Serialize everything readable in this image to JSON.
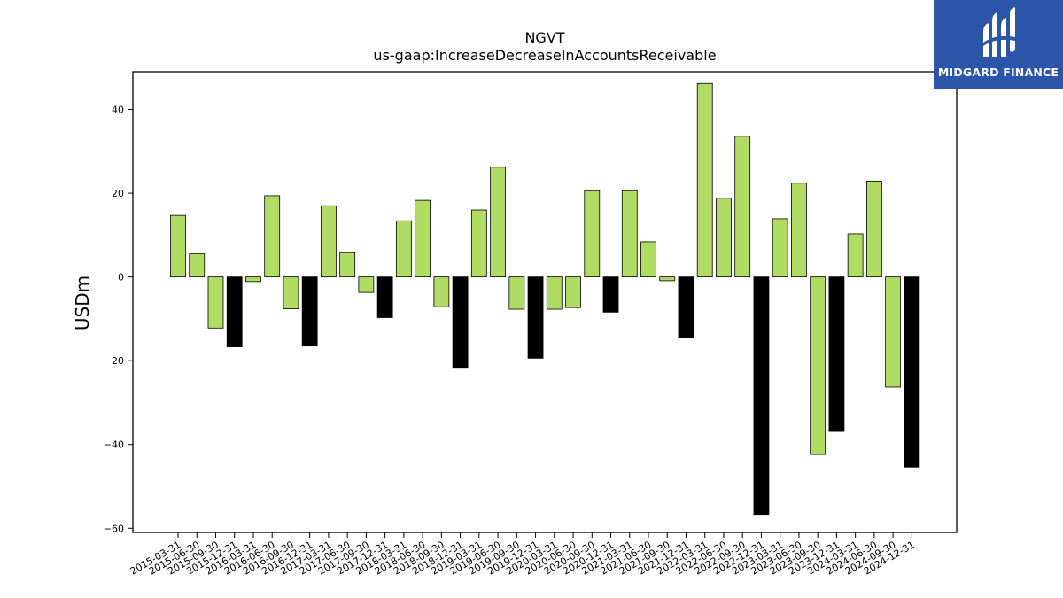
{
  "brand": {
    "name": "MIDGARD FINANCE",
    "background": "#2a55a8",
    "icon": "midgard-logo-icon"
  },
  "chart_data": {
    "type": "bar",
    "title": "NGVT",
    "subtitle": "us-gaap:IncreaseDecreaseInAccountsReceivable",
    "xlabel": "",
    "ylabel": "USDm",
    "ylim": [
      -61,
      49
    ],
    "yticks": [
      -60,
      -40,
      -20,
      0,
      20,
      40
    ],
    "grid": false,
    "colors": {
      "default": "#b0dc64",
      "q4": "#000000",
      "edge": "#000000"
    },
    "note_colors": "Bars for Dec-31 periods are drawn black; all others green.",
    "categories": [
      "2015-03-31",
      "2015-06-30",
      "2015-09-30",
      "2015-12-31",
      "2016-03-31",
      "2016-06-30",
      "2016-09-30",
      "2016-12-31",
      "2017-03-31",
      "2017-06-30",
      "2017-09-30",
      "2017-12-31",
      "2018-03-31",
      "2018-06-30",
      "2018-09-30",
      "2018-12-31",
      "2019-03-31",
      "2019-06-30",
      "2019-09-30",
      "2019-12-31",
      "2020-03-31",
      "2020-06-30",
      "2020-09-30",
      "2020-12-31",
      "2021-03-31",
      "2021-06-30",
      "2021-09-30",
      "2021-12-31",
      "2022-03-31",
      "2022-06-30",
      "2022-09-30",
      "2022-12-31",
      "2023-03-31",
      "2023-06-30",
      "2023-09-30",
      "2023-12-31",
      "2024-03-31",
      "2024-06-30",
      "2024-09-30",
      "2024-12-31"
    ],
    "values": [
      14.7,
      5.5,
      -12.2,
      -16.7,
      -1.1,
      19.4,
      -7.6,
      -16.5,
      17.0,
      5.8,
      -3.7,
      -9.7,
      13.4,
      18.3,
      -7.1,
      -21.6,
      16.0,
      26.2,
      -7.7,
      -19.4,
      -7.7,
      -7.3,
      20.6,
      -8.4,
      20.6,
      8.4,
      -0.9,
      -14.5,
      46.2,
      18.8,
      33.6,
      -56.7,
      13.9,
      22.4,
      -42.4,
      -36.9,
      10.3,
      22.9,
      -26.3,
      -45.4
    ]
  }
}
